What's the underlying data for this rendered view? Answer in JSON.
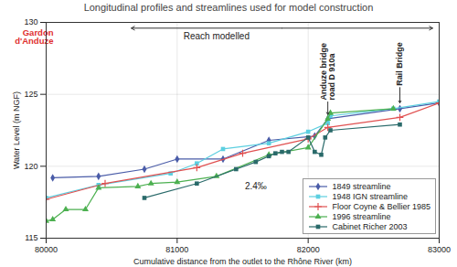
{
  "chart_data": {
    "type": "line",
    "title": "Longitudinal profiles and streamlines used for model construction",
    "x_label": "Cumulative distance from the outlet to the Rhône River (km)",
    "y_label": "Water Level (m NGF)",
    "xlim": [
      80000,
      83000
    ],
    "xticks": [
      80000,
      81000,
      82000,
      83000
    ],
    "ylim": [
      115,
      130
    ],
    "yticks": [
      115,
      120,
      125,
      130
    ],
    "grid": true,
    "legend": "bottom-right",
    "series": [
      {
        "name": "1849 streamline",
        "color": "#4a5ca8",
        "marker": "diamond",
        "line_style": "solid",
        "x": [
          80050,
          80400,
          80750,
          81000,
          81350,
          81700,
          82050,
          82150,
          82700,
          83000
        ],
        "values": [
          119.2,
          119.3,
          119.8,
          120.5,
          120.5,
          121.8,
          122.1,
          123.3,
          124.0,
          124.4
        ]
      },
      {
        "name": "1948 IGN streamline",
        "color": "#5ccfe0",
        "marker": "square",
        "line_style": "solid",
        "x": [
          80000,
          80400,
          80950,
          81150,
          81350,
          81700,
          82000,
          82150,
          82170,
          82650,
          83000
        ],
        "values": [
          117.8,
          118.7,
          119.5,
          120.2,
          121.2,
          121.6,
          122.4,
          123.0,
          123.5,
          124.0,
          124.5
        ]
      },
      {
        "name": "Floor Coyne & Bellier 1985",
        "color": "#e05050",
        "marker": "plus",
        "line_style": "solid",
        "x": [
          80000,
          80450,
          81150,
          81500,
          82000,
          82150,
          82700,
          83000
        ],
        "values": [
          117.7,
          118.8,
          119.9,
          120.9,
          121.9,
          122.7,
          123.4,
          124.4
        ]
      },
      {
        "name": "1996 streamline",
        "color": "#4cb050",
        "marker": "triangle",
        "line_style": "solid",
        "x": [
          80000,
          80050,
          80150,
          80300,
          80400,
          80700,
          80800,
          81000,
          81300,
          81700,
          82000,
          82150,
          82170,
          82650
        ],
        "values": [
          116.2,
          116.3,
          117.0,
          117.0,
          118.5,
          118.6,
          118.8,
          118.9,
          119.3,
          120.8,
          121.3,
          123.3,
          123.7,
          124.0
        ]
      },
      {
        "name": "Cabinet Richer 2003",
        "color": "#2a6a6a",
        "marker": "square",
        "line_style": "solid",
        "x": [
          80750,
          81150,
          81450,
          81600,
          81700,
          81750,
          81800,
          81850,
          82000,
          82050,
          82100,
          82130,
          82170,
          82700
        ],
        "values": [
          117.8,
          118.8,
          119.8,
          120.3,
          120.7,
          120.9,
          121.0,
          121.0,
          122.0,
          121.0,
          120.8,
          122.0,
          122.5,
          122.9
        ]
      }
    ],
    "annotations": [
      {
        "text": "Gardon\nd'Anduze",
        "x": 80000,
        "y": 129.0,
        "color": "#e03030"
      },
      {
        "text": "2.4‰",
        "x": 81600,
        "y": 118.6,
        "color": "#222222"
      }
    ],
    "reach": {
      "text": "Reach modelled",
      "x": 81300,
      "y": 129.0,
      "x1": 80650,
      "x2": 82950,
      "arrow_y": 129.6
    },
    "bridges": [
      {
        "text": "Anduze bridge\nroad D 910a",
        "x": 82150,
        "y": 124.6,
        "arrow_to": 123.6
      },
      {
        "text": "Rail Bridge",
        "x": 82700,
        "y": 125.6,
        "arrow_to": 124.4
      }
    ]
  }
}
